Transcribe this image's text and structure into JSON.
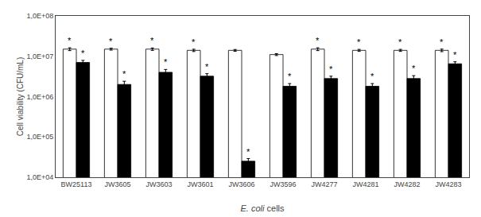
{
  "chart_data": {
    "type": "bar",
    "xlabel": "E. coli cells",
    "ylabel": "Cell viability (CFU/mL)",
    "categories": [
      "BW25113",
      "JW3605",
      "JW3603",
      "JW3601",
      "JW3606",
      "JW3596",
      "JW4277",
      "JW4281",
      "JW4282",
      "JW4283"
    ],
    "series": [
      {
        "color": "#ffffff",
        "values": [
          15000000.0,
          15000000.0,
          15000000.0,
          14000000.0,
          14000000.0,
          11000000.0,
          15000000.0,
          14000000.0,
          14000000.0,
          14000000.0
        ],
        "errors": [
          1200000.0,
          800000.0,
          1000000.0,
          900000.0,
          700000.0,
          600000.0,
          1200000.0,
          800000.0,
          800000.0,
          1000000.0
        ],
        "annotations": [
          "*",
          "*",
          "*",
          "*",
          null,
          null,
          "*",
          "*",
          "*",
          "*"
        ]
      },
      {
        "color": "#000000",
        "values": [
          7000000.0,
          2000000.0,
          4000000.0,
          3200000.0,
          25000.0,
          1800000.0,
          2800000.0,
          1800000.0,
          2800000.0,
          6500000.0
        ],
        "errors": [
          900000.0,
          400000.0,
          700000.0,
          500000.0,
          4000.0,
          300000.0,
          400000.0,
          300000.0,
          500000.0,
          800000.0
        ],
        "annotations": [
          "*",
          "*",
          "*",
          "*",
          "*",
          "*",
          "*",
          "*",
          "*",
          "*"
        ]
      }
    ],
    "log": "y",
    "ylim": [
      10000.0,
      100000000.0
    ],
    "yticks": [
      {
        "value": 10000.0,
        "label": "1,0E+04"
      },
      {
        "value": 100000.0,
        "label": "1,0E+05"
      },
      {
        "value": 1000000.0,
        "label": "1,0E+06"
      },
      {
        "value": 10000000.0,
        "label": "1,0E+07"
      },
      {
        "value": 100000000.0,
        "label": "1,0E+08"
      }
    ],
    "grid": false
  }
}
